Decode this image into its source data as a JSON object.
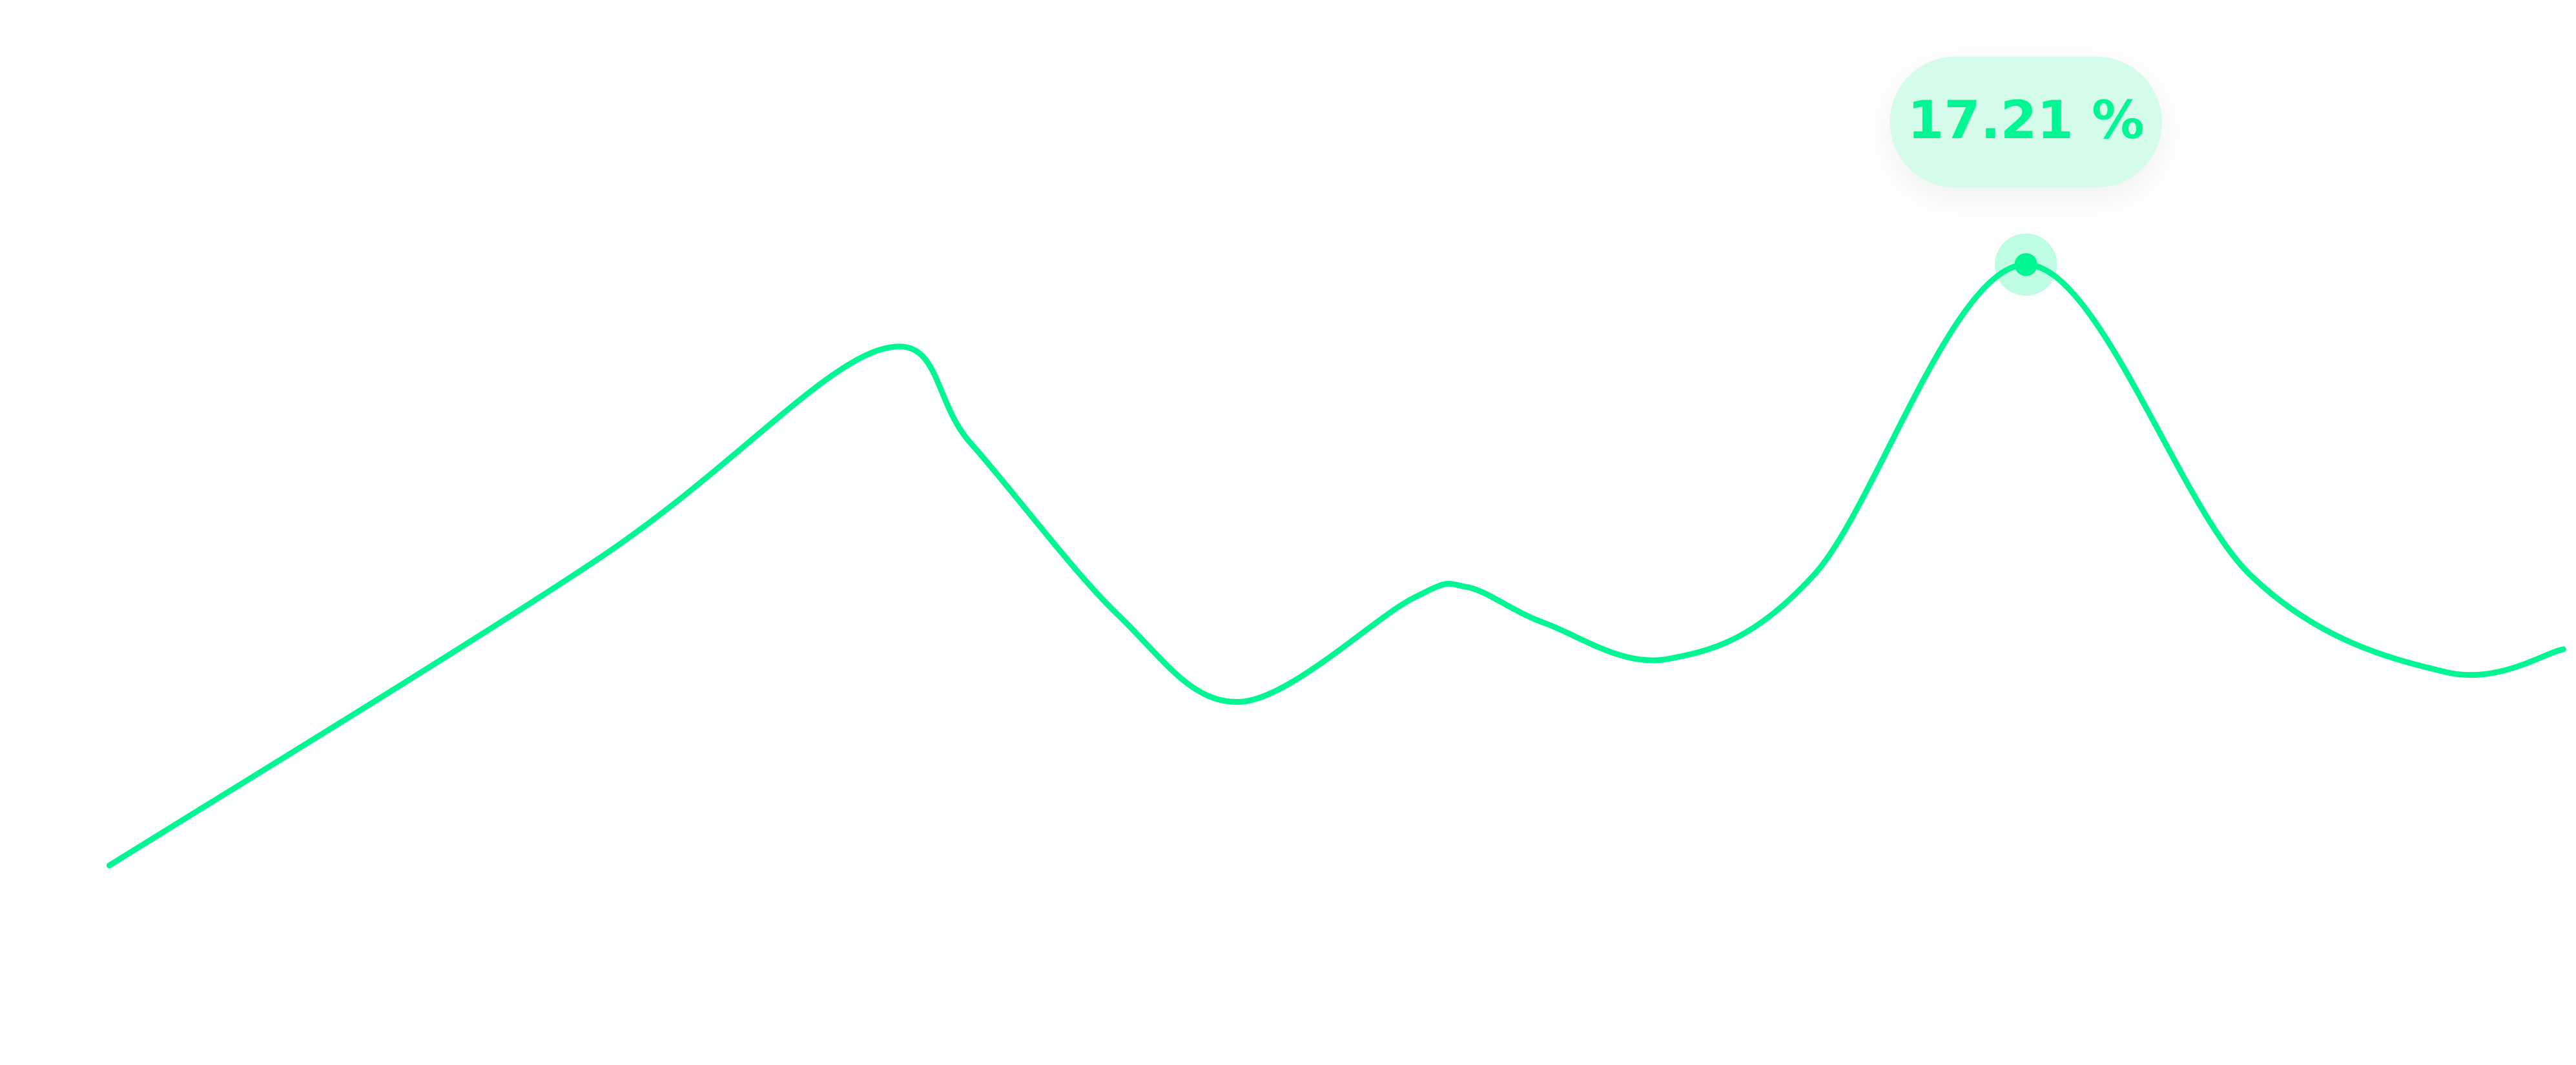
{
  "chart_data": {
    "type": "line",
    "x": [
      0,
      20.0,
      31.4,
      35.1,
      41.1,
      46.1,
      53.1,
      55.3,
      58.5,
      63.5,
      69.5,
      78.1,
      87.2,
      95.2,
      100
    ],
    "values": [
      4.29,
      10.91,
      15.38,
      13.37,
      9.68,
      7.81,
      10.03,
      10.28,
      9.5,
      8.73,
      10.56,
      17.21,
      10.56,
      8.45,
      8.94
    ],
    "value_labels": [
      null,
      null,
      null,
      null,
      null,
      null,
      null,
      null,
      null,
      null,
      null,
      "17.21 %",
      null,
      null,
      null
    ],
    "color": "#00f593",
    "xlim": [
      0,
      100
    ],
    "ylim": [
      0,
      22.9
    ]
  }
}
